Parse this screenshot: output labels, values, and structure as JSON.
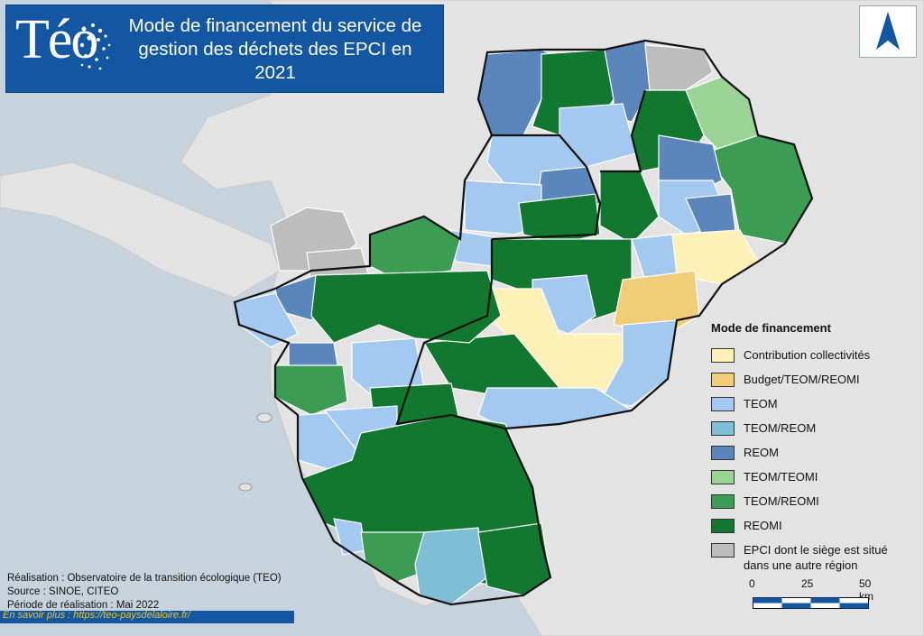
{
  "header": {
    "logo_text": "Téo",
    "title_lines": [
      "Mode de financement du service de",
      "gestion des déchets des EPCI en",
      "2021"
    ]
  },
  "legend": {
    "title": "Mode de financement",
    "items": [
      {
        "label": "Contribution collectivités",
        "color": "#fdf1b8"
      },
      {
        "label": "Budget/TEOM/REOMI",
        "color": "#f2cd78"
      },
      {
        "label": "TEOM",
        "color": "#a4c9f1"
      },
      {
        "label": "TEOM/REOM",
        "color": "#7fbfd6"
      },
      {
        "label": "REOM",
        "color": "#5a86bc"
      },
      {
        "label": "TEOM/TEOMI",
        "color": "#99d494"
      },
      {
        "label": "TEOM/REOMI",
        "color": "#3c9c54"
      },
      {
        "label": "REOMI",
        "color": "#12772f"
      },
      {
        "label": "EPCI dont le siège est situé",
        "label2": "dans une autre région",
        "color": "#bdbdbd"
      }
    ]
  },
  "scale": {
    "labels": [
      "0",
      "25",
      "50 km"
    ]
  },
  "credits": {
    "line1": "Réalisation : Observatoire de la transition écologique (TEO)",
    "line2": "Source : SINOE, CITEO",
    "line3": "Période de réalisation : Mai 2022"
  },
  "link": {
    "text": "En savoir plus : https://teo-paysdelaloire.fr/"
  },
  "colors": {
    "sea": "#c6d3dc",
    "land": "#e2e2e2",
    "title_bg": "#1356a2",
    "north_arrow": "#1356a2"
  }
}
